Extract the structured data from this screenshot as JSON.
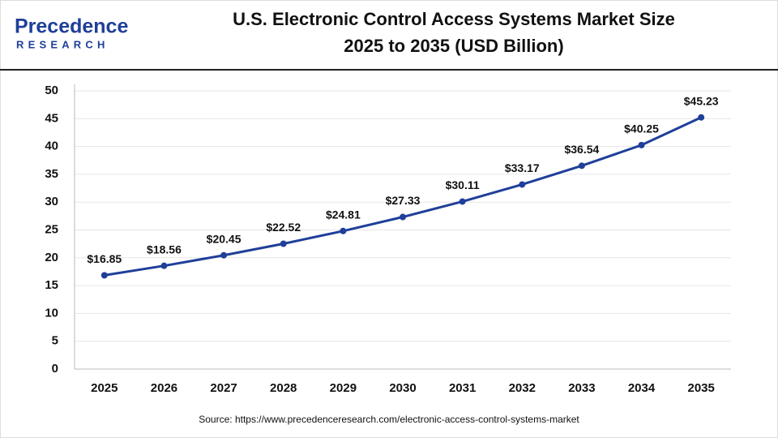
{
  "logo": {
    "name": "Precedence",
    "sub": "RESEARCH"
  },
  "chart_data": {
    "type": "line",
    "title": [
      "U.S. Electronic Control Access Systems Market Size",
      "2025 to 2035 (USD Billion)"
    ],
    "categories": [
      "2025",
      "2026",
      "2027",
      "2028",
      "2029",
      "2030",
      "2031",
      "2032",
      "2033",
      "2034",
      "2035"
    ],
    "values": [
      16.85,
      18.56,
      20.45,
      22.52,
      24.81,
      27.33,
      30.11,
      33.17,
      36.54,
      40.25,
      45.23
    ],
    "value_labels": [
      "$16.85",
      "$18.56",
      "$20.45",
      "$22.52",
      "$24.81",
      "$27.33",
      "$30.11",
      "$33.17",
      "$36.54",
      "$40.25",
      "$45.23"
    ],
    "color": "#1f3f99",
    "ylim": [
      0,
      50
    ],
    "yticks": [
      0,
      5,
      10,
      15,
      20,
      25,
      30,
      35,
      40,
      45,
      50
    ],
    "grid": true,
    "source": "Source: https://www.precedenceresearch.com/electronic-access-control-systems-market"
  }
}
